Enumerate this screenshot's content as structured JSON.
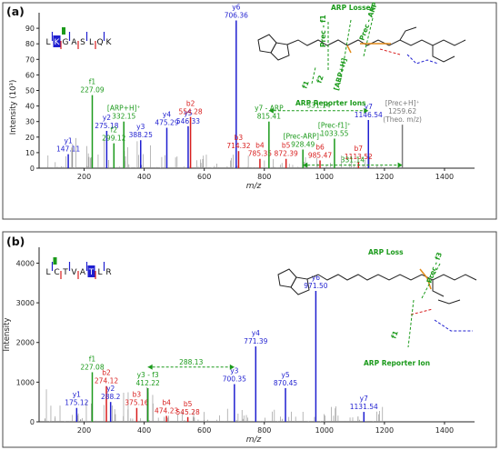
{
  "colors": {
    "blue": "#1f1fd0",
    "red": "#d81e1e",
    "green": "#1b9a1b",
    "gray": "#7a7a7a",
    "noise": "#8a8a8a",
    "axis": "#222222"
  },
  "panels": [
    {
      "panel_label": "(a)",
      "peptide": {
        "letters": [
          "L",
          "K",
          "G",
          "A",
          "S",
          "L",
          "Q",
          "K"
        ],
        "highlight_index": 1,
        "mod_index": 2
      },
      "structure_labels": {
        "arp_losses": "ARP Losses",
        "prec_f1": "Prec - f1",
        "prec_arp": "Prec - ARP",
        "f1": "f1",
        "f2": "f2",
        "arp_h": "[ARP+H]",
        "reporter": "ARP Reporter Ions"
      }
    },
    {
      "panel_label": "(b)",
      "peptide": {
        "letters": [
          "L",
          "C",
          "T",
          "V",
          "A",
          "T",
          "L",
          "R"
        ],
        "highlight_index": 5,
        "mod_index": 1
      },
      "structure_labels": {
        "arp_loss": "ARP Loss",
        "prec_f3": "Prec - f3",
        "f1": "f1",
        "reporter": "ARP Reporter Ion"
      }
    }
  ],
  "chart_data": [
    {
      "type": "bar",
      "title": "",
      "xlabel": "m/z",
      "ylabel": "Intensity (10³)",
      "xlim": [
        50,
        1500
      ],
      "ylim": [
        0,
        100
      ],
      "xticks": [
        200,
        400,
        600,
        800,
        1000,
        1200,
        1400
      ],
      "yticks": [
        0,
        10,
        20,
        30,
        40,
        50,
        60,
        70,
        80,
        90
      ],
      "peaks": [
        {
          "mz": 147.11,
          "y": 9,
          "color": "blue",
          "label": [
            "y1",
            "147.11"
          ]
        },
        {
          "mz": 227.09,
          "y": 47,
          "color": "green",
          "label": [
            "f1",
            "227.09"
          ]
        },
        {
          "mz": 275.18,
          "y": 24,
          "color": "blue",
          "label": [
            "y2",
            "275.18"
          ]
        },
        {
          "mz": 299.12,
          "y": 16,
          "color": "green",
          "label": [
            "f2",
            "299.12"
          ]
        },
        {
          "mz": 332.15,
          "y": 30,
          "color": "green",
          "label": [
            "[ARP+H]⁺",
            "332.15"
          ]
        },
        {
          "mz": 388.25,
          "y": 18,
          "color": "blue",
          "label": [
            "y3",
            "388.25"
          ]
        },
        {
          "mz": 475.29,
          "y": 26,
          "color": "blue",
          "label": [
            "y4",
            "475.29"
          ]
        },
        {
          "mz": 546.33,
          "y": 27,
          "color": "blue",
          "label": [
            "y5",
            "546.33"
          ]
        },
        {
          "mz": 554.28,
          "y": 33,
          "color": "red",
          "label": [
            "b2",
            "554.28"
          ]
        },
        {
          "mz": 706.36,
          "y": 95,
          "color": "blue",
          "label": [
            "y6",
            "706.36"
          ]
        },
        {
          "mz": 714.32,
          "y": 11,
          "color": "red",
          "label": [
            "b3",
            "714.32"
          ]
        },
        {
          "mz": 785.35,
          "y": 6,
          "color": "red",
          "label": [
            "b4",
            "785.35"
          ]
        },
        {
          "mz": 815.41,
          "y": 30,
          "color": "green",
          "label": [
            "y7 - ARP",
            "815.41"
          ]
        },
        {
          "mz": 872.39,
          "y": 6,
          "color": "red",
          "label": [
            "b5",
            "872.39"
          ]
        },
        {
          "mz": 928.49,
          "y": 12,
          "color": "green",
          "label": [
            "[Prec-ARP]⁺",
            "928.49"
          ]
        },
        {
          "mz": 985.47,
          "y": 5,
          "color": "red",
          "label": [
            "b6",
            "985.47"
          ]
        },
        {
          "mz": 1033.55,
          "y": 19,
          "color": "green",
          "label": [
            "[Prec-f1]⁺",
            "1033.55"
          ]
        },
        {
          "mz": 1113.52,
          "y": 4,
          "color": "red",
          "label": [
            "b7",
            "1113.52"
          ]
        },
        {
          "mz": 1146.54,
          "y": 31,
          "color": "blue",
          "label": [
            "y7",
            "1146.54"
          ]
        },
        {
          "mz": 1259.62,
          "y": 28,
          "color": "gray",
          "label": [
            "[Prec+H]⁺",
            "1259.62",
            "(Theo. m/z)"
          ]
        }
      ],
      "annotations": [
        {
          "from": 815.41,
          "to": 1146.54,
          "y": 37,
          "text": "331.14"
        },
        {
          "from": 928.49,
          "to": 1259.62,
          "y": 2,
          "text": "331.14"
        }
      ]
    },
    {
      "type": "bar",
      "title": "",
      "xlabel": "m/z",
      "ylabel": "Intensity",
      "xlim": [
        50,
        1500
      ],
      "ylim": [
        0,
        4400
      ],
      "xticks": [
        200,
        400,
        600,
        800,
        1000,
        1200,
        1400
      ],
      "yticks": [
        0,
        1000,
        2000,
        3000,
        4000
      ],
      "peaks": [
        {
          "mz": 175.12,
          "y": 350,
          "color": "blue",
          "label": [
            "y1",
            "175.12"
          ]
        },
        {
          "mz": 227.08,
          "y": 1250,
          "color": "green",
          "label": [
            "f1",
            "227.08"
          ]
        },
        {
          "mz": 274.12,
          "y": 900,
          "color": "red",
          "label": [
            "b2",
            "274.12"
          ]
        },
        {
          "mz": 288.2,
          "y": 500,
          "color": "blue",
          "label": [
            "y2",
            "288.2"
          ]
        },
        {
          "mz": 375.16,
          "y": 350,
          "color": "red",
          "label": [
            "b3",
            "375.16"
          ]
        },
        {
          "mz": 412.22,
          "y": 850,
          "color": "green",
          "label": [
            "y3 - f3",
            "412.22"
          ]
        },
        {
          "mz": 474.23,
          "y": 150,
          "color": "red",
          "label": [
            "b4",
            "474.23"
          ]
        },
        {
          "mz": 545.28,
          "y": 120,
          "color": "red",
          "label": [
            "b5",
            "545.28"
          ]
        },
        {
          "mz": 700.35,
          "y": 950,
          "color": "blue",
          "label": [
            "y3",
            "700.35"
          ]
        },
        {
          "mz": 771.39,
          "y": 1900,
          "color": "blue",
          "label": [
            "y4",
            "771.39"
          ]
        },
        {
          "mz": 870.45,
          "y": 850,
          "color": "blue",
          "label": [
            "y5",
            "870.45"
          ]
        },
        {
          "mz": 971.5,
          "y": 3300,
          "color": "blue",
          "label": [
            "y6",
            "971.50"
          ]
        },
        {
          "mz": 1131.54,
          "y": 250,
          "color": "blue",
          "label": [
            "y7",
            "1131.54"
          ]
        }
      ],
      "annotations": [
        {
          "from": 412.22,
          "to": 700.35,
          "y": 1380,
          "text": "288.13"
        }
      ]
    }
  ]
}
